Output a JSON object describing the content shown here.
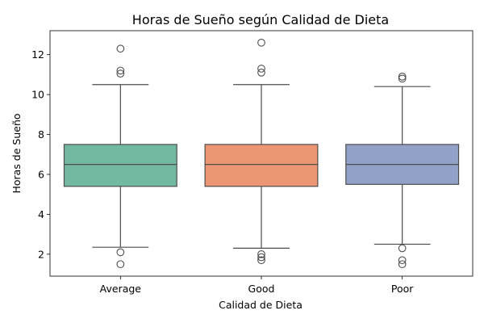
{
  "chart_data": {
    "type": "box",
    "title": "Horas de Sueño según Calidad de Dieta",
    "xlabel": "Calidad de Dieta",
    "ylabel": "Horas de Sueño",
    "ylim": [
      0.9,
      13.2
    ],
    "yticks": [
      2,
      4,
      6,
      8,
      10,
      12
    ],
    "grid": false,
    "categories": [
      "Average",
      "Good",
      "Poor"
    ],
    "boxes": [
      {
        "category": "Average",
        "color": "#73b8a0",
        "whisker_low": 2.35,
        "q1": 5.4,
        "median": 6.5,
        "q3": 7.5,
        "whisker_high": 10.5,
        "outliers": [
          12.3,
          11.2,
          11.05,
          2.1,
          1.5
        ]
      },
      {
        "category": "Good",
        "color": "#ec9673",
        "whisker_low": 2.3,
        "q1": 5.4,
        "median": 6.5,
        "q3": 7.5,
        "whisker_high": 10.5,
        "outliers": [
          12.6,
          11.3,
          11.1,
          2.0,
          1.85,
          1.7
        ]
      },
      {
        "category": "Poor",
        "color": "#92a1c7",
        "whisker_low": 2.5,
        "q1": 5.5,
        "median": 6.5,
        "q3": 7.5,
        "whisker_high": 10.4,
        "outliers": [
          10.9,
          10.8,
          2.3,
          1.7,
          1.5
        ]
      }
    ]
  }
}
